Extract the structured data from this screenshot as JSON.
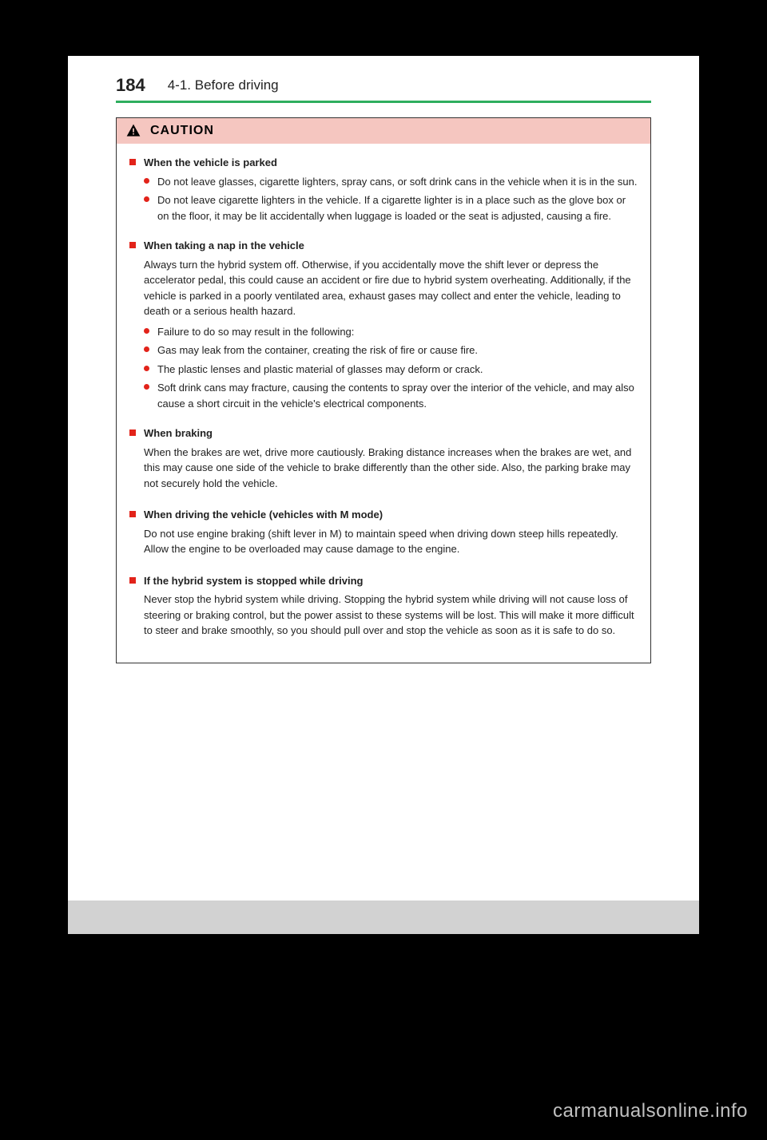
{
  "header": {
    "page_number": "184",
    "breadcrumb": "4-1. Before driving"
  },
  "caution": {
    "label": "CAUTION",
    "sections": [
      {
        "title": "When the vehicle is parked",
        "intro": null,
        "bullets": [
          "Do not leave glasses, cigarette lighters, spray cans, or soft drink cans in the vehicle when it is in the sun.",
          "Do not leave cigarette lighters in the vehicle. If a cigarette lighter is in a place such as the glove box or on the floor, it may be lit accidentally when luggage is loaded or the seat is adjusted, causing a fire."
        ]
      },
      {
        "title": "When taking a nap in the vehicle",
        "intro": "Always turn the hybrid system off. Otherwise, if you accidentally move the shift lever or depress the accelerator pedal, this could cause an accident or fire due to hybrid system overheating. Additionally, if the vehicle is parked in a poorly ventilated area, exhaust gases may collect and enter the vehicle, leading to death or a serious health hazard.",
        "bullets": [
          "Failure to do so may result in the following:",
          "Gas may leak from the container, creating the risk of fire or cause fire.",
          "The plastic lenses and plastic material of glasses may deform or crack.",
          "Soft drink cans may fracture, causing the contents to spray over the interior of the vehicle, and may also cause a short circuit in the vehicle's electrical components."
        ]
      },
      {
        "title": "When braking",
        "intro": "When the brakes are wet, drive more cautiously. Braking distance increases when the brakes are wet, and this may cause one side of the vehicle to brake differently than the other side. Also, the parking brake may not securely hold the vehicle.",
        "bullets": []
      },
      {
        "title": "When driving the vehicle (vehicles with M mode)",
        "intro": "Do not use engine braking (shift lever in M) to maintain speed when driving down steep hills repeatedly. Allow the engine to be overloaded may cause damage to the engine.",
        "bullets": []
      },
      {
        "title": "If the hybrid system is stopped while driving",
        "intro": "Never stop the hybrid system while driving. Stopping the hybrid system while driving will not cause loss of steering or braking control, but the power assist to these systems will be lost. This will make it more difficult to steer and brake smoothly, so you should pull over and stop the vehicle as soon as it is safe to do so.",
        "bullets": []
      }
    ]
  },
  "watermark": "carmanualsonline.info",
  "colors": {
    "rule": "#2eae5e",
    "caution_bg": "#f5c6c0",
    "accent_red": "#e2231a",
    "footer_bg": "#d2d2d2",
    "page_bg": "#ffffff",
    "body_bg": "#000000"
  }
}
